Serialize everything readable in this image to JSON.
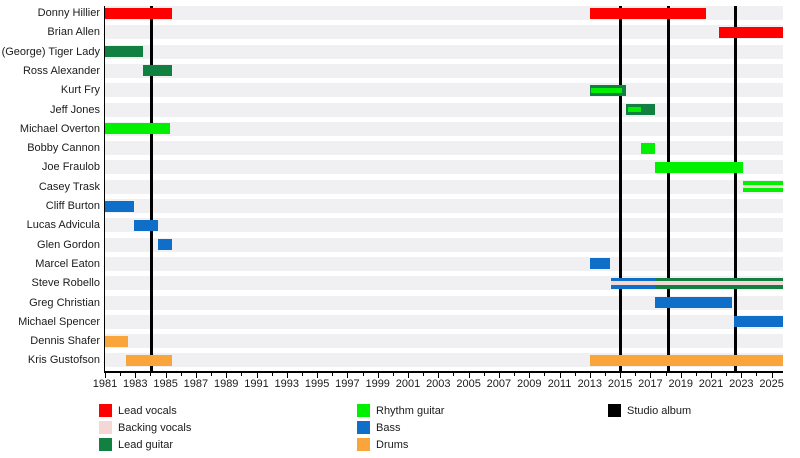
{
  "chart_data": {
    "type": "timeline",
    "description": "Band members timeline gantt chart with studio album release lines",
    "x_axis": {
      "start": 1981,
      "end": 2025.75,
      "major_tick_years": [
        1981,
        1983,
        1985,
        1987,
        1989,
        1991,
        1993,
        1995,
        1997,
        1999,
        2001,
        2003,
        2005,
        2007,
        2009,
        2011,
        2013,
        2015,
        2017,
        2019,
        2021,
        2023,
        2025
      ],
      "minor_tick_step": 1
    },
    "albums": {
      "label": "Studio album",
      "years": [
        1984.1,
        2015.0,
        2018.2,
        2022.6
      ]
    },
    "roles": [
      {
        "id": "lead_vocals",
        "label": "Lead vocals",
        "color": "#fe0000"
      },
      {
        "id": "backing_vocals",
        "label": "Backing vocals",
        "color": "#f5d7d5"
      },
      {
        "id": "lead_guitar",
        "label": "Lead guitar",
        "color": "#118040"
      },
      {
        "id": "rhythm_guitar",
        "label": "Rhythm guitar",
        "color": "#00f000"
      },
      {
        "id": "bass",
        "label": "Bass",
        "color": "#0e6ec8"
      },
      {
        "id": "drums",
        "label": "Drums",
        "color": "#faa43c"
      },
      {
        "id": "studio_album",
        "label": "Studio album",
        "color": "#000000"
      }
    ],
    "members": [
      {
        "name": "Donny Hillier",
        "segments": [
          {
            "from": 1981,
            "to": 1985.4,
            "role": "lead_vocals"
          },
          {
            "from": 2013,
            "to": 2020.7,
            "role": "lead_vocals"
          }
        ]
      },
      {
        "name": "Brian Allen",
        "segments": [
          {
            "from": 2021.5,
            "to": 2025.75,
            "role": "lead_vocals"
          }
        ]
      },
      {
        "name": "(George) Tiger Lady",
        "segments": [
          {
            "from": 1981,
            "to": 1983.5,
            "role": "lead_guitar"
          }
        ]
      },
      {
        "name": "Ross Alexander",
        "segments": [
          {
            "from": 1983.5,
            "to": 1985.4,
            "role": "lead_guitar"
          }
        ]
      },
      {
        "name": "Kurt Fry",
        "segments": [
          {
            "from": 2013,
            "to": 2015.4,
            "role": "lead_guitar",
            "stripe": {
              "role": "rhythm_guitar",
              "from": 2013.1,
              "to": 2015.1
            }
          }
        ]
      },
      {
        "name": "Jeff Jones",
        "segments": [
          {
            "from": 2015.4,
            "to": 2017.3,
            "role": "lead_guitar",
            "stripe": {
              "role": "rhythm_guitar",
              "from": 2015.5,
              "to": 2016.4
            }
          }
        ]
      },
      {
        "name": "Michael Overton",
        "segments": [
          {
            "from": 1981,
            "to": 1985.3,
            "role": "rhythm_guitar"
          }
        ]
      },
      {
        "name": "Bobby Cannon",
        "segments": [
          {
            "from": 2016.4,
            "to": 2017.3,
            "role": "rhythm_guitar"
          }
        ]
      },
      {
        "name": "Joe Fraulob",
        "segments": [
          {
            "from": 2017.3,
            "to": 2023.1,
            "role": "rhythm_guitar"
          }
        ]
      },
      {
        "name": "Casey Trask",
        "segments": [
          {
            "from": 2023.1,
            "to": 2025.75,
            "role": "rhythm_guitar",
            "stripe": {
              "role": "backing_vocals",
              "from": 2023.1,
              "to": 2025.75
            }
          }
        ]
      },
      {
        "name": "Cliff Burton",
        "segments": [
          {
            "from": 1981,
            "to": 1982.9,
            "role": "bass"
          }
        ]
      },
      {
        "name": "Lucas Advicula",
        "segments": [
          {
            "from": 1982.9,
            "to": 1984.5,
            "role": "bass"
          }
        ]
      },
      {
        "name": "Glen Gordon",
        "segments": [
          {
            "from": 1984.5,
            "to": 1985.4,
            "role": "bass"
          }
        ]
      },
      {
        "name": "Marcel Eaton",
        "segments": [
          {
            "from": 2013,
            "to": 2014.3,
            "role": "bass"
          }
        ]
      },
      {
        "name": "Steve Robello",
        "segments": [
          {
            "from": 2014.4,
            "to": 2017.3,
            "role": "bass",
            "stripe": {
              "role": "backing_vocals",
              "from": 2014.4,
              "to": 2017.3
            }
          },
          {
            "from": 2017.3,
            "to": 2025.75,
            "role": "lead_guitar",
            "stripe": {
              "role": "backing_vocals",
              "from": 2017.3,
              "to": 2025.75
            }
          }
        ]
      },
      {
        "name": "Greg Christian",
        "segments": [
          {
            "from": 2017.3,
            "to": 2022.4,
            "role": "bass"
          }
        ]
      },
      {
        "name": "Michael Spencer",
        "segments": [
          {
            "from": 2022.5,
            "to": 2025.75,
            "role": "bass"
          }
        ]
      },
      {
        "name": "Dennis Shafer",
        "segments": [
          {
            "from": 1981,
            "to": 1982.5,
            "role": "drums"
          }
        ]
      },
      {
        "name": "Kris Gustofson",
        "segments": [
          {
            "from": 1982.4,
            "to": 1985.4,
            "role": "drums"
          },
          {
            "from": 2013,
            "to": 2025.75,
            "role": "drums"
          }
        ]
      }
    ]
  },
  "legend": {
    "columns": [
      {
        "items": [
          {
            "label": "Lead vocals",
            "role": "lead_vocals"
          },
          {
            "label": "Backing vocals",
            "role": "backing_vocals"
          },
          {
            "label": "Lead guitar",
            "role": "lead_guitar"
          }
        ]
      },
      {
        "items": [
          {
            "label": "Rhythm guitar",
            "role": "rhythm_guitar"
          },
          {
            "label": "Bass",
            "role": "bass"
          },
          {
            "label": "Drums",
            "role": "drums"
          }
        ]
      },
      {
        "items": [
          {
            "label": "Studio album",
            "role": "studio_album"
          }
        ]
      }
    ]
  }
}
